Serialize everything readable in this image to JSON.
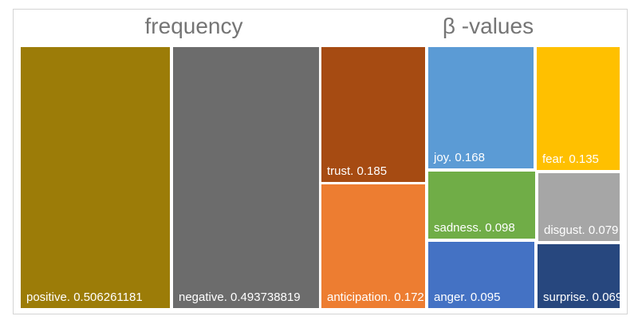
{
  "chart_data": {
    "type": "treemap",
    "legend": "none",
    "label_format": "name. value",
    "label_color": "#FFFFFF",
    "title_color": "#757575",
    "border_color": "#D4D4D4",
    "groups": [
      {
        "name": "frequency",
        "items": [
          {
            "label": "positive",
            "value": 0.506261181,
            "text": "positive. 0.506261181",
            "color": "#9C7C08"
          },
          {
            "label": "negative",
            "value": 0.493738819,
            "text": "negative. 0.493738819",
            "color": "#6C6C6C"
          }
        ]
      },
      {
        "name": "β -values",
        "items": [
          {
            "label": "trust",
            "value": 0.185,
            "text": "trust. 0.185",
            "color": "#A64B12"
          },
          {
            "label": "anticipation",
            "value": 0.172,
            "text": "anticipation. 0.172",
            "color": "#ED7D31"
          },
          {
            "label": "joy",
            "value": 0.168,
            "text": "joy. 0.168",
            "color": "#5B9BD5"
          },
          {
            "label": "fear",
            "value": 0.135,
            "text": "fear. 0.135",
            "color": "#FFC000"
          },
          {
            "label": "sadness",
            "value": 0.098,
            "text": "sadness. 0.098",
            "color": "#70AD47"
          },
          {
            "label": "disgust",
            "value": 0.079,
            "text": "disgust. 0.079",
            "color": "#A6A6A6"
          },
          {
            "label": "anger",
            "value": 0.095,
            "text": "anger. 0.095",
            "color": "#4472C4"
          },
          {
            "label": "surprise",
            "value": 0.069,
            "text": "surprise. 0.069",
            "color": "#27477E"
          }
        ]
      }
    ]
  }
}
